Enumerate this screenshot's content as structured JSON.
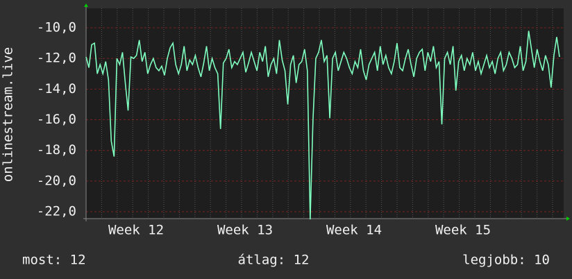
{
  "chart_data": {
    "type": "line",
    "y_label": "onlinestream.live",
    "x_labels": [
      "Week 12",
      "Week 13",
      "Week 14",
      "Week 15"
    ],
    "series": [
      {
        "color": "#7fffc0",
        "values": [
          -11.9,
          -12.6,
          -11.1,
          -11.0,
          -13.0,
          -12.4,
          -13.0,
          -12.2,
          -13.4,
          -17.4,
          -18.4,
          -12.0,
          -12.4,
          -11.6,
          -13.6,
          -15.4,
          -11.9,
          -12.0,
          -11.8,
          -10.8,
          -12.2,
          -11.6,
          -13.0,
          -12.4,
          -12.0,
          -12.6,
          -12.8,
          -12.5,
          -13.1,
          -12.0,
          -11.3,
          -11.0,
          -12.4,
          -13.0,
          -12.4,
          -11.2,
          -12.8,
          -12.1,
          -12.4,
          -11.8,
          -12.6,
          -13.2,
          -12.3,
          -11.2,
          -12.8,
          -12.0,
          -12.6,
          -13.0,
          -16.6,
          -12.3,
          -12.0,
          -11.4,
          -12.6,
          -12.2,
          -12.4,
          -12.0,
          -11.6,
          -12.9,
          -12.3,
          -11.6,
          -12.2,
          -12.8,
          -11.6,
          -12.2,
          -11.2,
          -13.2,
          -12.4,
          -12.0,
          -13.0,
          -10.8,
          -12.1,
          -12.8,
          -15.0,
          -12.4,
          -11.8,
          -13.6,
          -12.4,
          -12.2,
          -11.4,
          -12.8,
          -22.5,
          -16.0,
          -12.0,
          -11.6,
          -10.8,
          -12.2,
          -11.8,
          -15.9,
          -12.0,
          -11.6,
          -12.8,
          -12.2,
          -11.6,
          -12.0,
          -12.6,
          -13.0,
          -12.2,
          -12.6,
          -11.4,
          -12.8,
          -13.4,
          -12.4,
          -12.0,
          -11.6,
          -12.8,
          -11.2,
          -12.4,
          -11.8,
          -12.6,
          -13.0,
          -12.2,
          -11.0,
          -12.6,
          -12.8,
          -12.0,
          -11.4,
          -12.4,
          -13.2,
          -12.0,
          -11.6,
          -11.4,
          -12.8,
          -11.6,
          -12.2,
          -11.2,
          -12.6,
          -12.2,
          -16.3,
          -12.0,
          -11.6,
          -12.4,
          -11.2,
          -14.1,
          -12.2,
          -11.8,
          -12.8,
          -12.0,
          -12.4,
          -11.6,
          -12.8,
          -12.2,
          -13.0,
          -12.4,
          -11.8,
          -12.6,
          -12.2,
          -13.0,
          -12.0,
          -11.6,
          -12.8,
          -12.4,
          -11.6,
          -12.0,
          -12.6,
          -12.4,
          -11.2,
          -12.8,
          -12.2,
          -10.2,
          -11.4,
          -12.6,
          -11.4,
          -12.2,
          -12.8,
          -11.8,
          -12.4,
          -13.9,
          -11.8,
          -10.6,
          -11.9
        ]
      }
    ],
    "ylim": [
      -22.45,
      -8.73
    ],
    "yticks": [
      {
        "value": -22,
        "label": "-22,0"
      },
      {
        "value": -20,
        "label": "-20,0"
      },
      {
        "value": -18,
        "label": "-18,0"
      },
      {
        "value": -16,
        "label": "-16,0"
      },
      {
        "value": -14,
        "label": "-14,0"
      },
      {
        "value": -12,
        "label": "-12,0"
      },
      {
        "value": -10,
        "label": "-10,0"
      }
    ],
    "grid": true
  },
  "footer": [
    "most: 12",
    "átlag: 12",
    "legjobb: 10"
  ]
}
